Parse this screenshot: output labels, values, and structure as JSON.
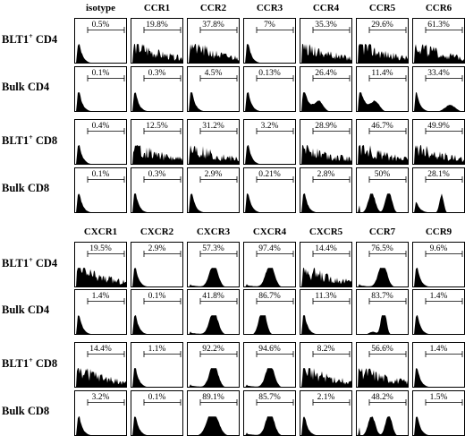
{
  "blocks": [
    {
      "headers": [
        "isotype",
        "CCR1",
        "CCR2",
        "CCR3",
        "CCR4",
        "CCR5",
        "CCR6"
      ],
      "rows": [
        {
          "prefix": "BLT1",
          "sup": "+",
          "suffix": " CD4",
          "values": [
            "0.5%",
            "19.8%",
            "37.8%",
            "7%",
            "35.3%",
            "29.6%",
            "61.3%"
          ],
          "shapes": [
            "skew",
            "flat",
            "flat",
            "skew",
            "flat",
            "flat",
            "flat"
          ]
        },
        {
          "prefix": "Bulk  CD4",
          "sup": "",
          "suffix": "",
          "values": [
            "0.1%",
            "0.3%",
            "4.5%",
            "0.13%",
            "26.4%",
            "11.4%",
            "33.4%"
          ],
          "shapes": [
            "skew",
            "skew",
            "skew",
            "skew",
            "shoulder",
            "shoulder",
            "bimodalSmall"
          ]
        },
        {
          "prefix": "BLT1",
          "sup": "+",
          "suffix": " CD8",
          "values": [
            "0.4%",
            "12.5%",
            "31.2%",
            "3.2%",
            "28.9%",
            "46.7%",
            "49.9%"
          ],
          "shapes": [
            "skew",
            "flat",
            "flat",
            "skew",
            "flat",
            "flat",
            "flat"
          ]
        },
        {
          "prefix": "Bulk  CD8",
          "sup": "",
          "suffix": "",
          "values": [
            "0.1%",
            "0.3%",
            "2.9%",
            "0.21%",
            "2.8%",
            "50%",
            "28.1%"
          ],
          "shapes": [
            "skew",
            "skew",
            "skew",
            "skew",
            "skew",
            "bimodal",
            "bimodalSharp"
          ]
        }
      ]
    },
    {
      "headers": [
        "CXCR1",
        "CXCR2",
        "CXCR3",
        "CXCR4",
        "CXCR5",
        "CCR7",
        "CCR9"
      ],
      "rows": [
        {
          "prefix": "BLT1",
          "sup": "+",
          "suffix": " CD4",
          "values": [
            "19.5%",
            "2.9%",
            "57.3%",
            "97.4%",
            "14.4%",
            "76.5%",
            "9.6%"
          ],
          "shapes": [
            "flat",
            "skew",
            "peakMid",
            "peakMid",
            "flat",
            "peakMid",
            "skew"
          ]
        },
        {
          "prefix": "Bulk  CD4",
          "sup": "",
          "suffix": "",
          "values": [
            "1.4%",
            "0.1%",
            "41.8%",
            "86.7%",
            "11.3%",
            "83.7%",
            "1.4%"
          ],
          "shapes": [
            "skew",
            "skew",
            "peakMid",
            "peakLeftMid",
            "skew",
            "peakTall",
            "skew"
          ]
        },
        {
          "prefix": "BLT1",
          "sup": "+",
          "suffix": " CD8",
          "values": [
            "14.4%",
            "1.1%",
            "92.2%",
            "94.6%",
            "8.2%",
            "56.6%",
            "1.4%"
          ],
          "shapes": [
            "flat",
            "skew",
            "peakMid",
            "peakMid",
            "flat",
            "flat",
            "skew"
          ]
        },
        {
          "prefix": "Bulk  CD8",
          "sup": "",
          "suffix": "",
          "values": [
            "3.2%",
            "0.1%",
            "89.1%",
            "85.7%",
            "2.1%",
            "48.2%",
            "1.5%"
          ],
          "shapes": [
            "skew",
            "skew",
            "peakMidWide",
            "peakMid",
            "skew",
            "bimodal",
            "skew"
          ]
        }
      ]
    }
  ]
}
